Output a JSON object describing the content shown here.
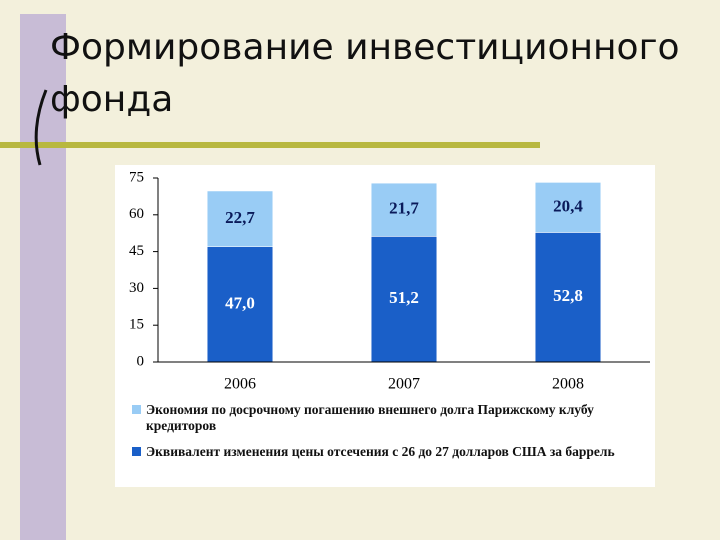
{
  "title": "Формирование инвестиционного фонда",
  "chart_data": {
    "type": "stacked-bar",
    "categories": [
      "2006",
      "2007",
      "2008"
    ],
    "series": [
      {
        "name": "Эквивалент изменения цены отсечения с 26 до 27 долларов США за баррель",
        "color": "#1a5fc8",
        "values": [
          47.0,
          51.2,
          52.8
        ],
        "value_labels": [
          "47,0",
          "51,2",
          "52,8"
        ]
      },
      {
        "name": "Экономия по досрочному погашению внешнего долга Парижскому клубу кредиторов",
        "color": "#99ccf5",
        "values": [
          22.7,
          21.7,
          20.4
        ],
        "value_labels": [
          "22,7",
          "21,7",
          "20,4"
        ]
      }
    ],
    "ylim": [
      0,
      75
    ],
    "yticks": [
      0,
      15,
      30,
      45,
      60,
      75
    ]
  }
}
